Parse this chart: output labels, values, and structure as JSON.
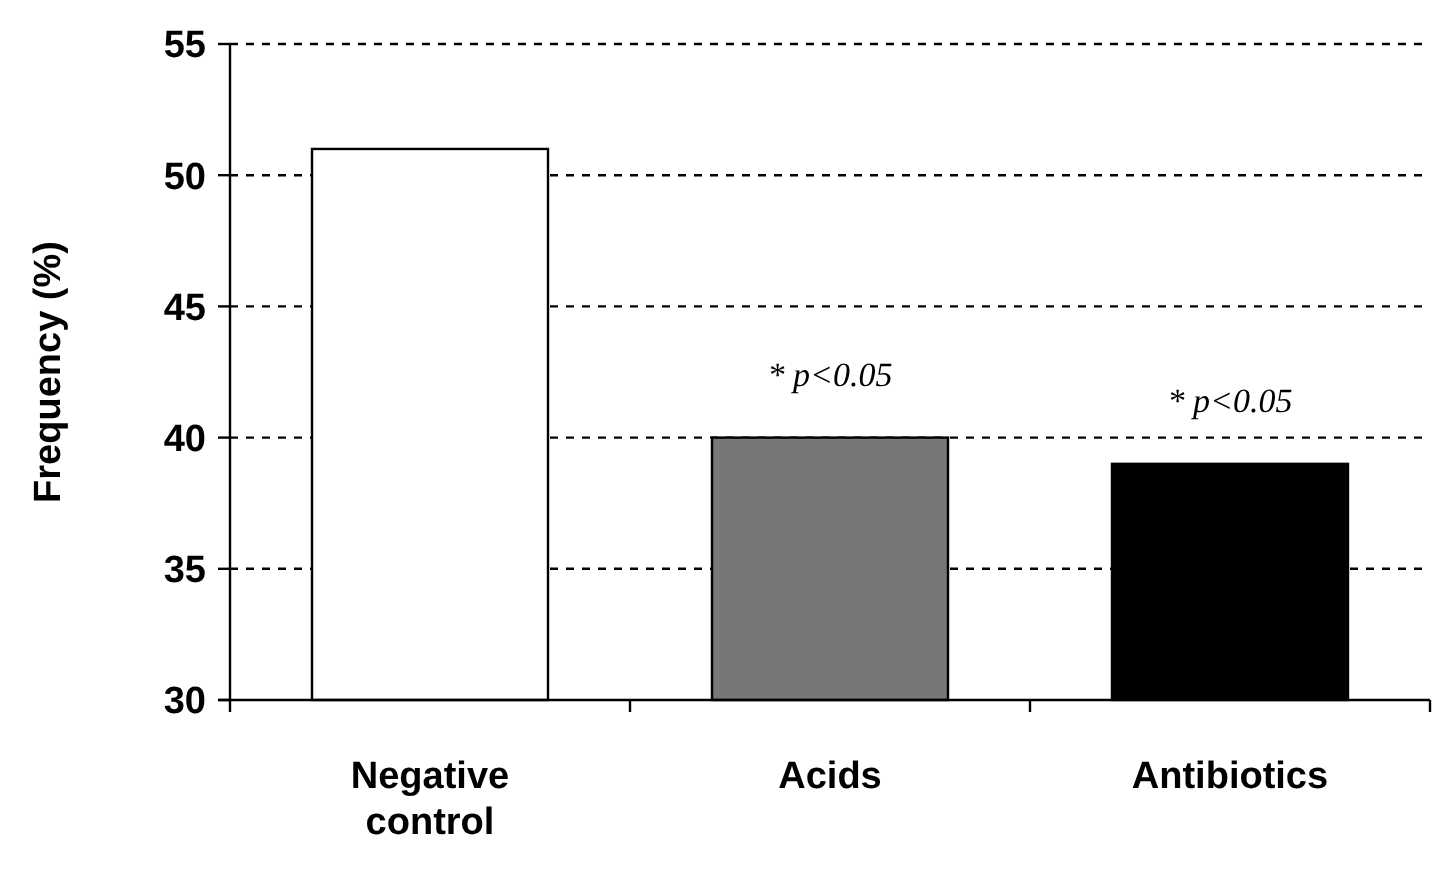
{
  "chart_data": {
    "type": "bar",
    "ylabel": "Frequency (%)",
    "categories": [
      "Negative control",
      "Acids",
      "Antibiotics"
    ],
    "values": [
      51,
      40,
      39
    ],
    "colors": [
      "#ffffff",
      "#777777",
      "#000000"
    ],
    "ylim": [
      30,
      55
    ],
    "yticks": [
      30,
      35,
      40,
      45,
      50,
      55
    ],
    "grid": "y",
    "annotations": [
      {
        "text": "* p<0.05",
        "x": "Acids",
        "y": 40
      },
      {
        "text": "* p<0.05",
        "x": "Antibiotics",
        "y": 39
      }
    ]
  }
}
